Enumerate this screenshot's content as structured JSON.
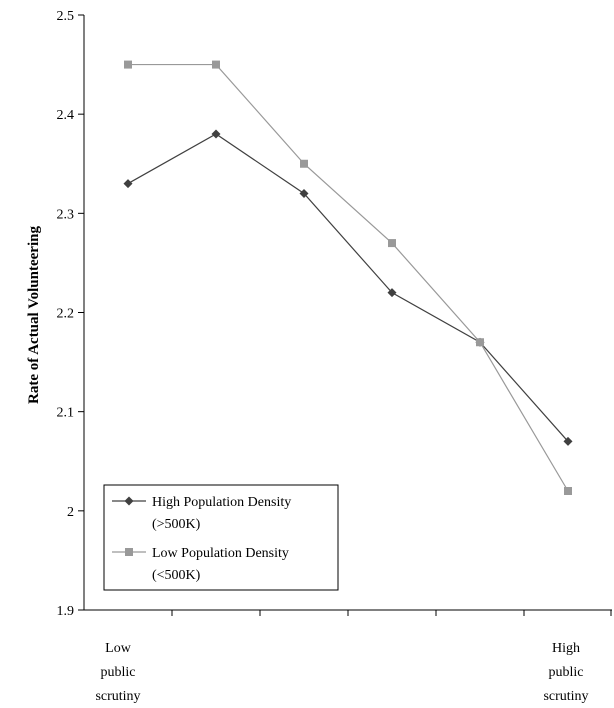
{
  "chart_data": {
    "type": "line",
    "ylabel": "Rate of Actual Volunteering",
    "xlabel": "",
    "ylim": [
      1.9,
      2.5
    ],
    "y_ticks": [
      "1.9",
      "2",
      "2.1",
      "2.2",
      "2.3",
      "2.4",
      "2.5"
    ],
    "x_categories": [
      1,
      2,
      3,
      4,
      5,
      6
    ],
    "x_end_labels": {
      "left": [
        "Low",
        "public",
        "scrutiny"
      ],
      "right": [
        "High",
        "public",
        "scrutiny"
      ]
    },
    "grid": false,
    "legend_position": "bottom-left",
    "series": [
      {
        "name": "High Population Density (>500K)",
        "legend_lines": [
          "High Population Density",
          "(>500K)"
        ],
        "marker": "diamond",
        "color": "#404040",
        "values": [
          2.33,
          2.38,
          2.32,
          2.22,
          2.17,
          2.07
        ]
      },
      {
        "name": "Low Population Density (<500K)",
        "legend_lines": [
          "Low Population Density",
          "(<500K)"
        ],
        "marker": "square",
        "color": "#999999",
        "values": [
          2.45,
          2.45,
          2.35,
          2.27,
          2.17,
          2.02
        ]
      }
    ]
  }
}
